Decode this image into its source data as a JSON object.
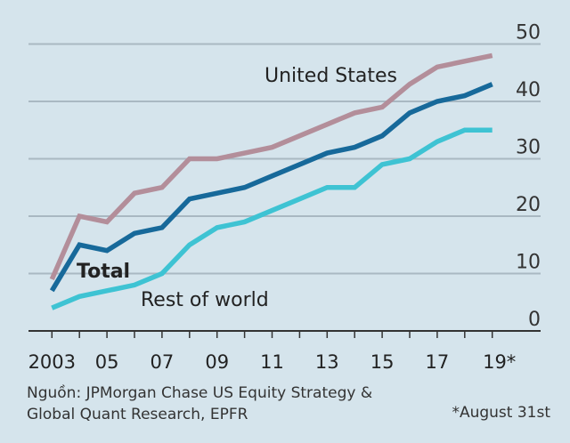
{
  "chart_data": {
    "type": "line",
    "x": [
      2003,
      2004,
      2005,
      2006,
      2007,
      2008,
      2009,
      2010,
      2011,
      2012,
      2013,
      2014,
      2015,
      2016,
      2017,
      2018,
      2019
    ],
    "xtick_labels": [
      "2003",
      "05",
      "07",
      "09",
      "11",
      "13",
      "15",
      "17",
      "19*"
    ],
    "xtick_values": [
      2003,
      2005,
      2007,
      2009,
      2011,
      2013,
      2015,
      2017,
      2019
    ],
    "ylim": [
      0,
      50
    ],
    "yticks": [
      0,
      10,
      20,
      30,
      40,
      50
    ],
    "grid": true,
    "series": [
      {
        "name": "United States",
        "color": "#b38e9a",
        "values": [
          9,
          20,
          19,
          24,
          25,
          30,
          30,
          31,
          32,
          34,
          36,
          38,
          39,
          43,
          46,
          47,
          48
        ]
      },
      {
        "name": "Total",
        "color": "#17699a",
        "values": [
          7,
          15,
          14,
          17,
          18,
          23,
          24,
          25,
          27,
          29,
          31,
          32,
          34,
          38,
          40,
          41,
          43
        ]
      },
      {
        "name": "Rest of world",
        "color": "#3ec3d3",
        "values": [
          4,
          6,
          7,
          8,
          10,
          15,
          18,
          19,
          21,
          23,
          25,
          25,
          29,
          30,
          33,
          35,
          35
        ]
      }
    ]
  },
  "source": {
    "label": "Nguồn",
    "text": ": JPMorgan Chase US Equity Strategy &",
    "text2": "Global Quant Research, EPFR"
  },
  "footnote": "*August 31st"
}
